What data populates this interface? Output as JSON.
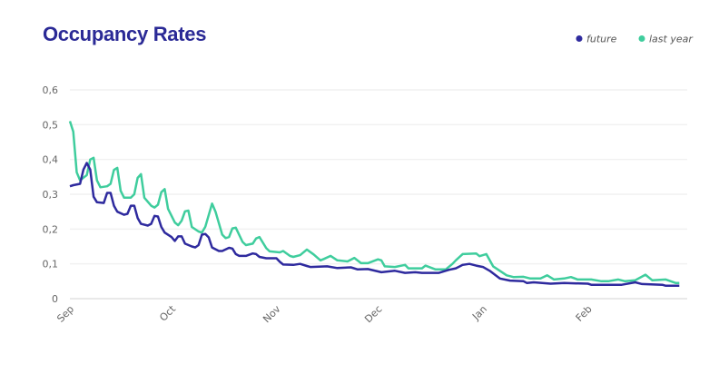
{
  "chart_data": {
    "type": "line",
    "title": "Occupancy Rates",
    "xlabel": "",
    "ylabel": "",
    "ylim": [
      0,
      0.6
    ],
    "yticks": [
      "0",
      "0,1",
      "0,2",
      "0,3",
      "0,4",
      "0,5",
      "0,6"
    ],
    "xticks": [
      "Sep",
      "Oct",
      "Nov",
      "Dec",
      "Jan",
      "Feb"
    ],
    "xrange": [
      "Sep 1",
      "Mar 1"
    ],
    "grid": true,
    "legend_position": "top-right",
    "series": [
      {
        "name": "future",
        "color": "#2e2a9e",
        "x": [
          "Sep 1",
          "Sep 2",
          "Sep 4",
          "Sep 5",
          "Sep 6",
          "Sep 7",
          "Sep 8",
          "Sep 9",
          "Sep 11",
          "Sep 12",
          "Sep 13",
          "Sep 14",
          "Sep 15",
          "Sep 17",
          "Sep 18",
          "Sep 19",
          "Sep 20",
          "Sep 21",
          "Sep 22",
          "Sep 24",
          "Sep 25",
          "Sep 26",
          "Sep 27",
          "Sep 28",
          "Sep 29",
          "Oct 1",
          "Oct 2",
          "Oct 3",
          "Oct 4",
          "Oct 5",
          "Oct 7",
          "Oct 8",
          "Oct 9",
          "Oct 10",
          "Oct 11",
          "Oct 12",
          "Oct 13",
          "Oct 15",
          "Oct 16",
          "Oct 18",
          "Oct 19",
          "Oct 20",
          "Oct 21",
          "Oct 23",
          "Oct 25",
          "Oct 26",
          "Oct 27",
          "Oct 29",
          "Nov 1",
          "Nov 2",
          "Nov 3",
          "Nov 6",
          "Nov 8",
          "Nov 10",
          "Nov 11",
          "Nov 16",
          "Nov 19",
          "Nov 23",
          "Nov 25",
          "Nov 28",
          "Dec 2",
          "Dec 6",
          "Dec 9",
          "Dec 12",
          "Dec 14",
          "Dec 19",
          "Dec 22",
          "Dec 24",
          "Dec 26",
          "Dec 28",
          "Dec 30",
          "Jan 1",
          "Jan 3",
          "Jan 6",
          "Jan 9",
          "Jan 13",
          "Jan 14",
          "Jan 16",
          "Jan 21",
          "Jan 25",
          "Feb 1",
          "Feb 2",
          "Feb 11",
          "Feb 15",
          "Feb 17",
          "Feb 23",
          "Feb 24",
          "Feb 28"
        ],
        "values": [
          0.323,
          0.326,
          0.33,
          0.371,
          0.39,
          0.371,
          0.293,
          0.277,
          0.275,
          0.304,
          0.304,
          0.267,
          0.25,
          0.241,
          0.244,
          0.267,
          0.267,
          0.232,
          0.215,
          0.21,
          0.215,
          0.238,
          0.236,
          0.206,
          0.19,
          0.177,
          0.166,
          0.179,
          0.179,
          0.158,
          0.15,
          0.147,
          0.154,
          0.184,
          0.186,
          0.176,
          0.147,
          0.137,
          0.137,
          0.146,
          0.144,
          0.128,
          0.123,
          0.123,
          0.13,
          0.128,
          0.12,
          0.116,
          0.116,
          0.106,
          0.098,
          0.097,
          0.1,
          0.094,
          0.091,
          0.093,
          0.088,
          0.09,
          0.084,
          0.085,
          0.076,
          0.08,
          0.074,
          0.076,
          0.074,
          0.074,
          0.083,
          0.087,
          0.097,
          0.1,
          0.095,
          0.091,
          0.08,
          0.058,
          0.052,
          0.05,
          0.045,
          0.047,
          0.043,
          0.045,
          0.043,
          0.04,
          0.04,
          0.047,
          0.042,
          0.04,
          0.037,
          0.037
        ]
      },
      {
        "name": "last year",
        "color": "#3fcd9d",
        "x": [
          "Sep 1",
          "Sep 2",
          "Sep 3",
          "Sep 4",
          "Sep 6",
          "Sep 7",
          "Sep 8",
          "Sep 9",
          "Sep 10",
          "Sep 12",
          "Sep 13",
          "Sep 14",
          "Sep 15",
          "Sep 16",
          "Sep 17",
          "Sep 19",
          "Sep 20",
          "Sep 21",
          "Sep 22",
          "Sep 23",
          "Sep 25",
          "Sep 26",
          "Sep 27",
          "Sep 28",
          "Sep 29",
          "Sep 30",
          "Oct 2",
          "Oct 3",
          "Oct 4",
          "Oct 5",
          "Oct 6",
          "Oct 7",
          "Oct 9",
          "Oct 10",
          "Oct 11",
          "Oct 13",
          "Oct 14",
          "Oct 16",
          "Oct 17",
          "Oct 18",
          "Oct 19",
          "Oct 20",
          "Oct 22",
          "Oct 23",
          "Oct 25",
          "Oct 26",
          "Oct 27",
          "Oct 29",
          "Oct 30",
          "Nov 2",
          "Nov 3",
          "Nov 5",
          "Nov 6",
          "Nov 8",
          "Nov 10",
          "Nov 12",
          "Nov 14",
          "Nov 15",
          "Nov 17",
          "Nov 19",
          "Nov 22",
          "Nov 24",
          "Nov 26",
          "Nov 28",
          "Dec 1",
          "Dec 2",
          "Dec 3",
          "Dec 6",
          "Dec 9",
          "Dec 10",
          "Dec 14",
          "Dec 15",
          "Dec 18",
          "Dec 21",
          "Dec 23",
          "Dec 24",
          "Dec 26",
          "Dec 30",
          "Dec 31",
          "Jan 2",
          "Jan 4",
          "Jan 8",
          "Jan 10",
          "Jan 13",
          "Jan 15",
          "Jan 18",
          "Jan 20",
          "Jan 22",
          "Jan 25",
          "Jan 27",
          "Jan 29",
          "Feb 2",
          "Feb 5",
          "Feb 7",
          "Feb 10",
          "Feb 12",
          "Feb 15",
          "Feb 18",
          "Feb 20",
          "Feb 24",
          "Feb 27",
          "Feb 28"
        ],
        "values": [
          0.51,
          0.48,
          0.363,
          0.34,
          0.355,
          0.4,
          0.405,
          0.34,
          0.32,
          0.323,
          0.33,
          0.37,
          0.376,
          0.31,
          0.29,
          0.29,
          0.3,
          0.347,
          0.358,
          0.29,
          0.267,
          0.262,
          0.27,
          0.306,
          0.315,
          0.258,
          0.219,
          0.211,
          0.224,
          0.251,
          0.253,
          0.206,
          0.193,
          0.19,
          0.207,
          0.273,
          0.25,
          0.184,
          0.174,
          0.177,
          0.202,
          0.204,
          0.163,
          0.154,
          0.158,
          0.173,
          0.177,
          0.145,
          0.136,
          0.133,
          0.137,
          0.123,
          0.12,
          0.125,
          0.141,
          0.127,
          0.11,
          0.114,
          0.123,
          0.11,
          0.107,
          0.117,
          0.102,
          0.102,
          0.113,
          0.11,
          0.093,
          0.091,
          0.097,
          0.087,
          0.087,
          0.095,
          0.084,
          0.084,
          0.1,
          0.11,
          0.128,
          0.13,
          0.122,
          0.128,
          0.093,
          0.067,
          0.062,
          0.063,
          0.058,
          0.058,
          0.067,
          0.055,
          0.058,
          0.062,
          0.055,
          0.055,
          0.05,
          0.05,
          0.055,
          0.05,
          0.053,
          0.069,
          0.053,
          0.055,
          0.045,
          0.045
        ]
      }
    ]
  }
}
